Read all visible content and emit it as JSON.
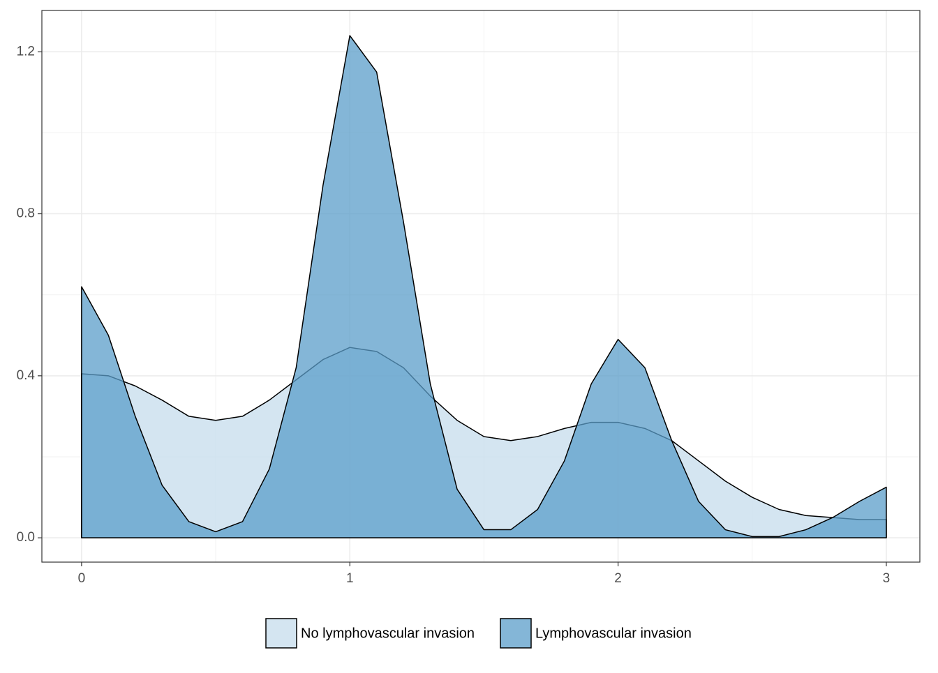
{
  "chart_data": {
    "type": "area",
    "x": [
      0,
      0.1,
      0.2,
      0.3,
      0.4,
      0.5,
      0.6,
      0.7,
      0.8,
      0.9,
      1.0,
      1.1,
      1.2,
      1.3,
      1.4,
      1.5,
      1.6,
      1.7,
      1.8,
      1.9,
      2.0,
      2.1,
      2.2,
      2.3,
      2.4,
      2.5,
      2.6,
      2.7,
      2.8,
      2.9,
      3.0
    ],
    "series": [
      {
        "name": "No lymphovascular invasion",
        "color": "#c6dcec",
        "values": [
          0.405,
          0.4,
          0.375,
          0.34,
          0.3,
          0.29,
          0.3,
          0.34,
          0.39,
          0.44,
          0.47,
          0.46,
          0.42,
          0.35,
          0.29,
          0.25,
          0.24,
          0.25,
          0.27,
          0.285,
          0.285,
          0.27,
          0.24,
          0.19,
          0.14,
          0.1,
          0.07,
          0.055,
          0.05,
          0.045,
          0.045
        ]
      },
      {
        "name": "Lymphovascular invasion",
        "color": "#5b9dc9",
        "values": [
          0.62,
          0.5,
          0.3,
          0.13,
          0.04,
          0.015,
          0.04,
          0.17,
          0.42,
          0.87,
          1.24,
          1.15,
          0.78,
          0.38,
          0.12,
          0.02,
          0.02,
          0.07,
          0.19,
          0.38,
          0.49,
          0.42,
          0.24,
          0.09,
          0.02,
          0.003,
          0.003,
          0.02,
          0.05,
          0.09,
          0.125
        ]
      }
    ],
    "xlim": [
      -0.148,
      3.125
    ],
    "ylim": [
      -0.06,
      1.302
    ],
    "xticks": [
      0,
      1,
      2,
      3
    ],
    "yticks": [
      {
        "value": 0,
        "label": "0.0"
      },
      0.4,
      0.8,
      {
        "value": 1.2,
        "label": "1.2"
      }
    ],
    "xminor": [
      0.5,
      1.5,
      2.5
    ],
    "yminor": [
      0.2,
      0.6,
      1.0
    ],
    "grid": true,
    "legend": "bottom"
  }
}
